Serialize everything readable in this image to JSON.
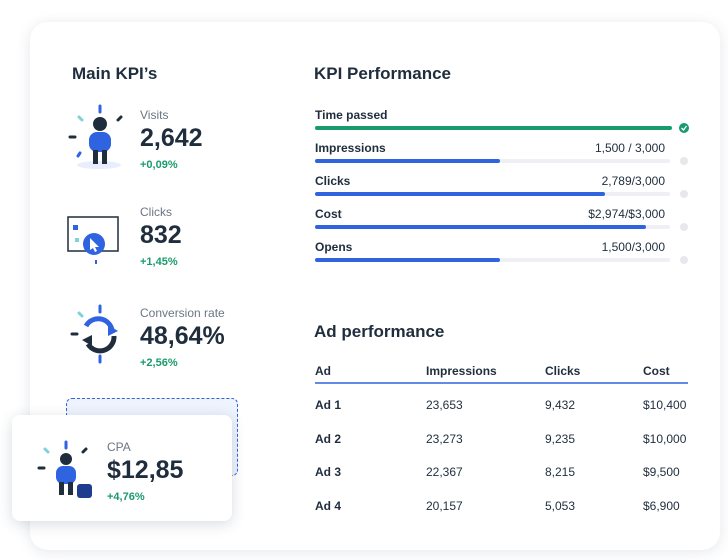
{
  "main_kpis": {
    "title": "Main KPI’s",
    "items": [
      {
        "label": "Visits",
        "value": "2,642",
        "change": "+0,09%"
      },
      {
        "label": "Clicks",
        "value": "832",
        "change": "+1,45%"
      },
      {
        "label": "Conversion rate",
        "value": "48,64%",
        "change": "+2,56%"
      },
      {
        "label": "CPA",
        "value": "$12,85",
        "change": "+4,76%"
      }
    ]
  },
  "kpi_performance": {
    "title": "KPI Performance",
    "rows": [
      {
        "label": "Time passed"
      },
      {
        "label": "Impressions",
        "value": "1,500 / 3,000"
      },
      {
        "label": "Clicks",
        "value": "2,789/3,000"
      },
      {
        "label": "Cost",
        "value": "$2,974/$3,000"
      },
      {
        "label": "Opens",
        "value": "1,500/3,000"
      }
    ]
  },
  "ad_performance": {
    "title": "Ad performance",
    "columns": [
      "Ad",
      "Impressions",
      "Clicks",
      "Cost"
    ],
    "rows": [
      [
        "Ad 1",
        "23,653",
        "9,432",
        "$10,400"
      ],
      [
        "Ad 2",
        "23,273",
        "9,235",
        "$10,000"
      ],
      [
        "Ad 3",
        "22,367",
        "8,215",
        "$9,500"
      ],
      [
        "Ad 4",
        "20,157",
        "5,053",
        "$6,900"
      ]
    ]
  }
}
